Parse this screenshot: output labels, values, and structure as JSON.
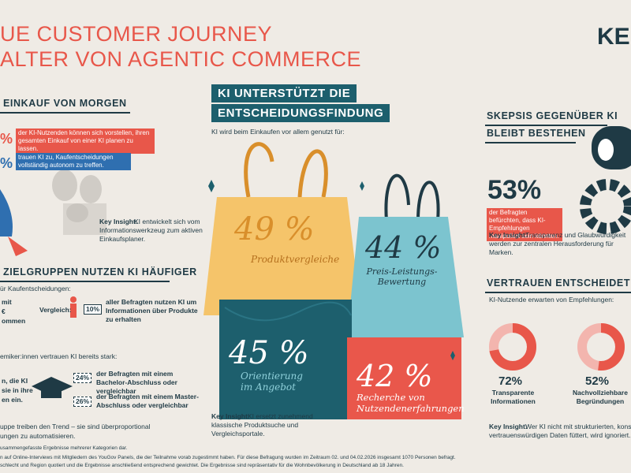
{
  "header": {
    "title_line1": "UE CUSTOMER JOURNEY",
    "title_line2": "ALTER VON AGENTIC COMMERCE",
    "logo": "KE"
  },
  "left": {
    "section1": {
      "heading": "EINKAUF VON MORGEN",
      "stat1": {
        "value": "%",
        "text": "der KI-Nutzenden können sich vorstellen, ihren gesamten Einkauf von einer KI planen zu lassen."
      },
      "stat2": {
        "value": "%",
        "text": "trauen KI zu, Kaufentscheidungen vollständig autonom zu treffen."
      },
      "insight_label": "Key Insight:",
      "insight": "KI entwickelt sich vom Informationswerkzeug zum aktiven Einkaufsplaner."
    },
    "section2": {
      "heading": "ZIELGRUPPEN NUTZEN KI HÄUFIGER",
      "intro": "ür Kaufentscheidungen:",
      "side_lines": [
        "mit",
        "€",
        "ommen"
      ],
      "compare_label": "Vergleich:",
      "compare_value": "10%",
      "compare_text": "aller Befragten nutzen KI um Informationen über Produkte zu erhalten",
      "academics": "emiker:innen vertrauen KI bereits stark:",
      "side_lines2": [
        "n, die KI",
        "sie in ihre",
        "en ein."
      ],
      "bachelor_value": "24%",
      "bachelor_text": "der Befragten mit einem Bachelor-Abschluss oder vergleichbar",
      "master_value": "26%",
      "master_text": "der Befragten mit einem Master-Abschluss oder vergleichbar",
      "closing": [
        "uppe treiben den Trend – sie sind überproportional",
        "ungen zu automatisieren."
      ]
    }
  },
  "center": {
    "heading_line1": "KI UNTERSTÜTZT DIE",
    "heading_line2": "ENTSCHEIDUNGSFINDUNG",
    "intro": "KI wird beim Einkaufen vor allem genutzt für:",
    "items": [
      {
        "value": "49 %",
        "label": "Produktvergleiche"
      },
      {
        "value": "44 %",
        "label": "Preis-Leistungs-Bewertung"
      },
      {
        "value": "45 %",
        "label": "Orientierung im Angebot"
      },
      {
        "value": "42 %",
        "label": "Recherche von Nutzendenerfahrungen"
      }
    ],
    "insight_label": "Key Insight:",
    "insight": "KI ersetzt zunehmend klassische Produktsuche und Vergleichsportale."
  },
  "right": {
    "section1": {
      "heading_line1": "SKEPSIS GEGENÜBER KI",
      "heading_line2": "BLEIBT BESTEHEN",
      "value": "53%",
      "text": "der Befragten befürchten, dass KI-Empfehlungen manipuliert sein könnten.",
      "insight_label": "Key Insight:",
      "insight": "Transparenz und Glaubwürdigkeit werden zur zentralen Herausforderung für Marken."
    },
    "section2": {
      "heading": "VERTRAUEN ENTSCHEIDET ÜBE",
      "intro": "KI-Nutzende erwarten von Empfehlungen:",
      "donuts": [
        {
          "value": 72,
          "label": "72%",
          "text": "Transparente Informationen"
        },
        {
          "value": 52,
          "label": "52%",
          "text": "Nachvollziehbare Begründungen"
        }
      ],
      "insight_label": "Key Insight:",
      "insight_line1": "Wer KI nicht mit strukturierten, konsistenten",
      "insight_line2": "vertrauenswürdigen Daten füttert, wird ignoriert."
    }
  },
  "footer": [
    "usammengefasste Ergebnisse mehrerer Kategorien dar.",
    "n auf Online-Interviews mit Mitgliedern des YouGov Panels, die der Teilnahme vorab zugestimmt haben. Für diese Befragung wurden im Zeitraum 02. und 04.02.2026 insgesamt 1070 Personen befragt.",
    "schlecht und Region quotiert und die Ergebnisse anschließend entsprechend gewichtet. Die Ergebnisse sind repräsentativ für die Wohnbevölkerung in Deutschland ab 18 Jahren."
  ]
}
